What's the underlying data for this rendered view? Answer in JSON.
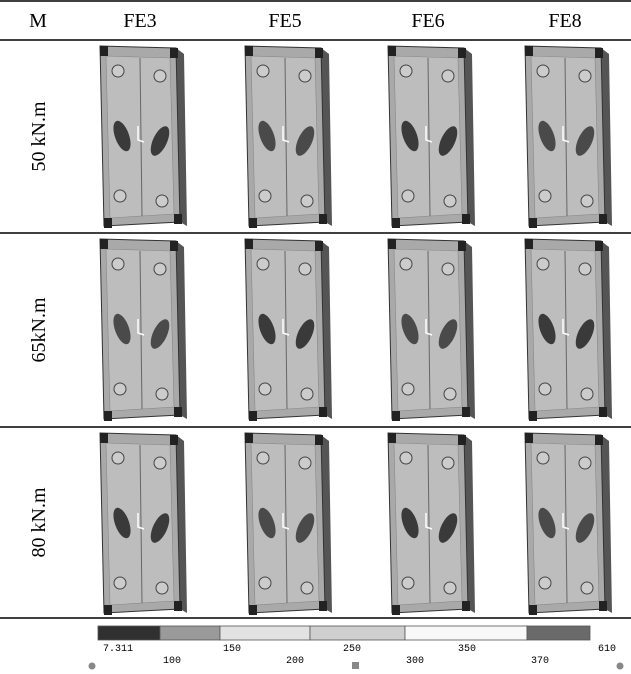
{
  "table": {
    "header": [
      "M",
      "FE3",
      "FE5",
      "FE6",
      "FE8"
    ],
    "rows": [
      "50 kN.m",
      "65kN.m",
      "80 kN.m"
    ]
  },
  "legend": {
    "labels": [
      "7.311",
      "100",
      "150",
      "200",
      "250",
      "300",
      "350",
      "370",
      "610"
    ]
  }
}
